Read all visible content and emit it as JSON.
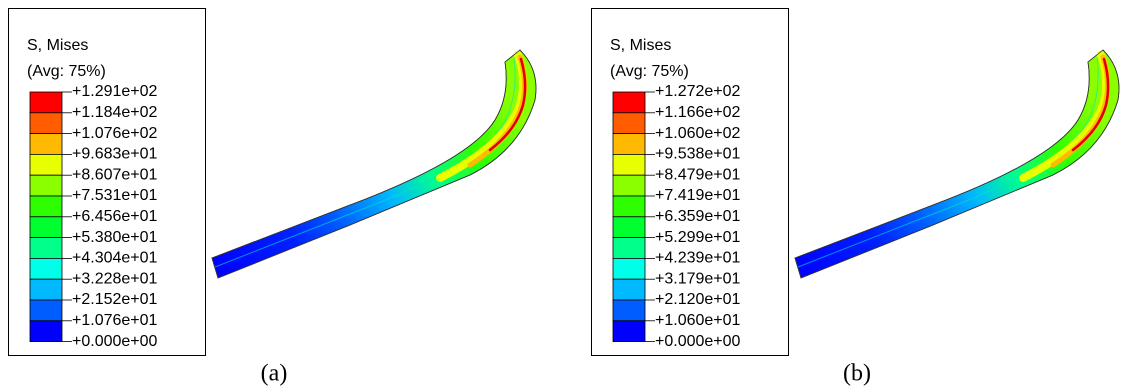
{
  "panels": [
    {
      "title": "S, Mises",
      "subtitle": "(Avg: 75%)",
      "labels": [
        "+1.291e+02",
        "+1.184e+02",
        "+1.076e+02",
        "+9.683e+01",
        "+8.607e+01",
        "+7.531e+01",
        "+6.456e+01",
        "+5.380e+01",
        "+4.304e+01",
        "+3.228e+01",
        "+2.152e+01",
        "+1.076e+01",
        "+0.000e+00"
      ],
      "colors": [
        "#ff0000",
        "#ff5d00",
        "#ffb900",
        "#e8ff00",
        "#8bff00",
        "#2eff00",
        "#00ff2e",
        "#00ff8b",
        "#00ffe8",
        "#00b9ff",
        "#005dff",
        "#0000ff"
      ],
      "caption": "(a)"
    },
    {
      "title": "S, Mises",
      "subtitle": "(Avg: 75%)",
      "labels": [
        "+1.272e+02",
        "+1.166e+02",
        "+1.060e+02",
        "+9.538e+01",
        "+8.479e+01",
        "+7.419e+01",
        "+6.359e+01",
        "+5.299e+01",
        "+4.239e+01",
        "+3.179e+01",
        "+2.120e+01",
        "+1.060e+01",
        "+0.000e+00"
      ],
      "colors": [
        "#ff0000",
        "#ff5d00",
        "#ffb900",
        "#e8ff00",
        "#8bff00",
        "#2eff00",
        "#00ff2e",
        "#00ff8b",
        "#00ffe8",
        "#00b9ff",
        "#005dff",
        "#0000ff"
      ],
      "caption": "(b)"
    }
  ]
}
